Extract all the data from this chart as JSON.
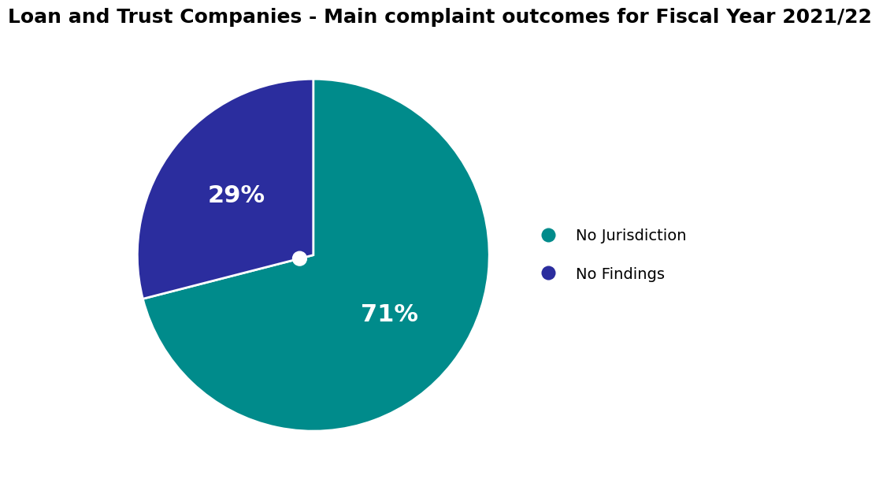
{
  "title": "Loan and Trust Companies - Main complaint outcomes for Fiscal Year 2021/22",
  "slices": [
    71,
    29
  ],
  "labels": [
    "No Jurisdiction",
    "No Findings"
  ],
  "colors": [
    "#008B8B",
    "#2B2D9E"
  ],
  "pct_labels": [
    "71%",
    "29%"
  ],
  "pct_colors": [
    "#ffffff",
    "#ffffff"
  ],
  "pct_fontsizes": [
    22,
    22
  ],
  "legend_labels": [
    "No Jurisdiction",
    "No Findings"
  ],
  "title_fontsize": 18,
  "startangle": 90
}
